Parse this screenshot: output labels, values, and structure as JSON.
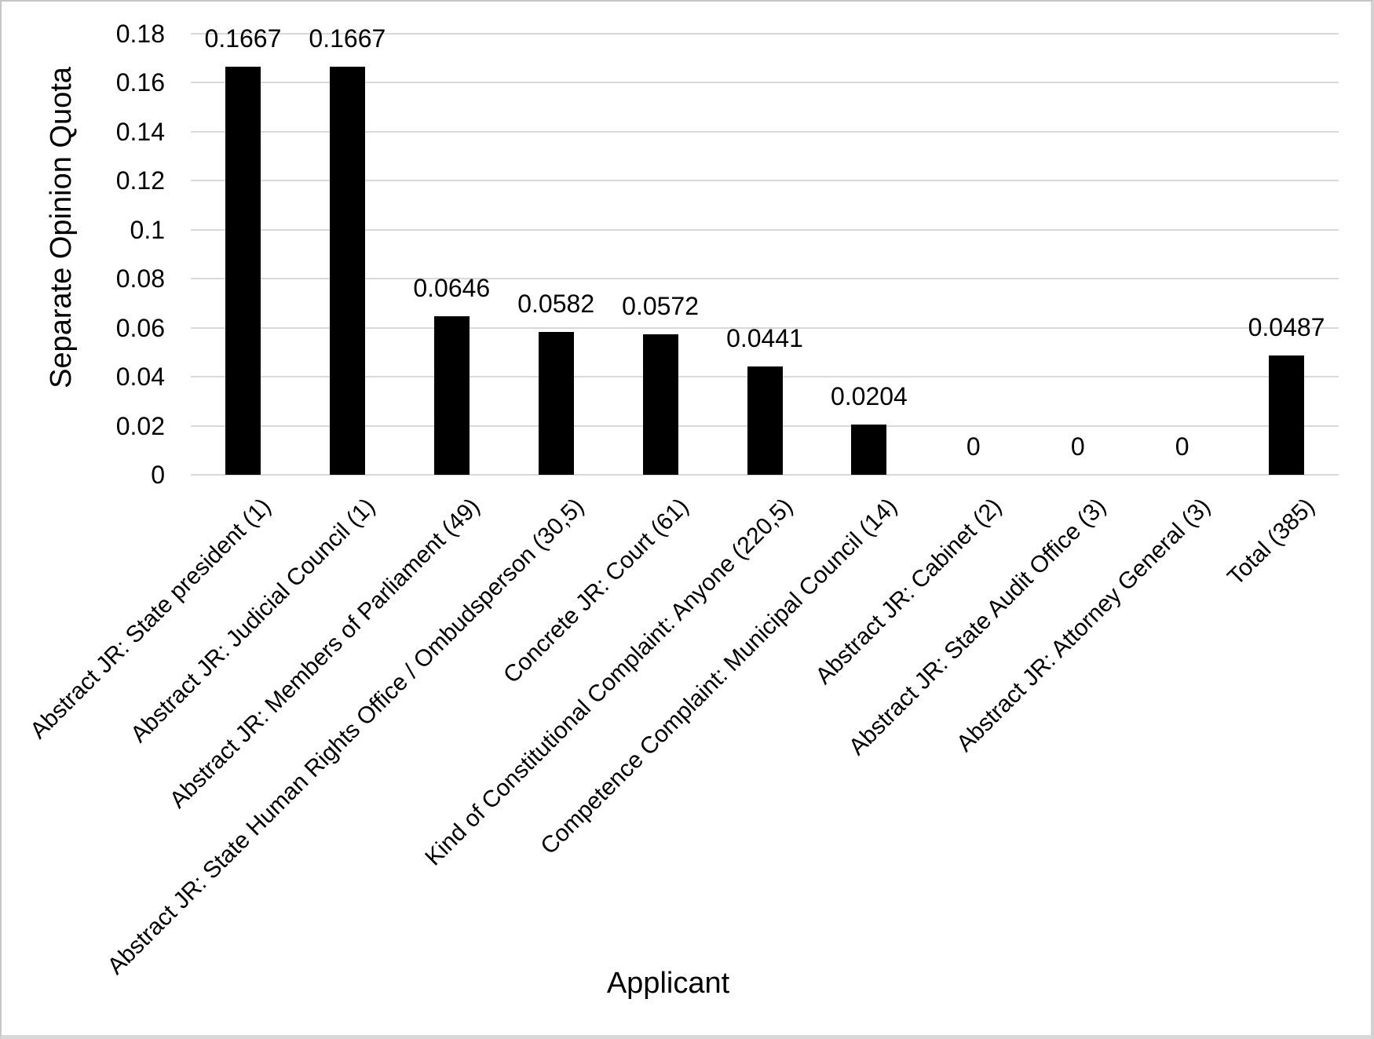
{
  "chart_data": {
    "type": "bar",
    "title": "",
    "xlabel": "Applicant",
    "ylabel": "Separate Opinion Quota",
    "ylim": [
      0,
      0.18
    ],
    "ytick_step": 0.02,
    "ytick_labels": [
      "0",
      "0.02",
      "0.04",
      "0.06",
      "0.08",
      "0.1",
      "0.12",
      "0.14",
      "0.16",
      "0.18"
    ],
    "grid": true,
    "legend": false,
    "bar_color": "#000000",
    "gridline_color": "#d9d9d9",
    "categories": [
      "Abstract JR: State president (1)",
      "Abstract JR: Judicial Council (1)",
      "Abstract JR: Members of Parliament (49)",
      "Abstract JR: State Human Rights Office / Ombudsperson (30,5)",
      "Concrete JR: Court (61)",
      "Kind of Constitutional Complaint: Anyone (220,5)",
      "Competence Complaint: Municipal Council (14)",
      "Abstract JR: Cabinet (2)",
      "Abstract JR: State Audit Office (3)",
      "Abstract JR: Attorney General (3)",
      "Total (385)"
    ],
    "values": [
      0.1667,
      0.1667,
      0.0646,
      0.0582,
      0.0572,
      0.0441,
      0.0204,
      0,
      0,
      0,
      0.0487
    ],
    "value_labels": [
      "0.1667",
      "0.1667",
      "0.0646",
      "0.0582",
      "0.0572",
      "0.0441",
      "0.0204",
      "0",
      "0",
      "0",
      "0.0487"
    ]
  }
}
